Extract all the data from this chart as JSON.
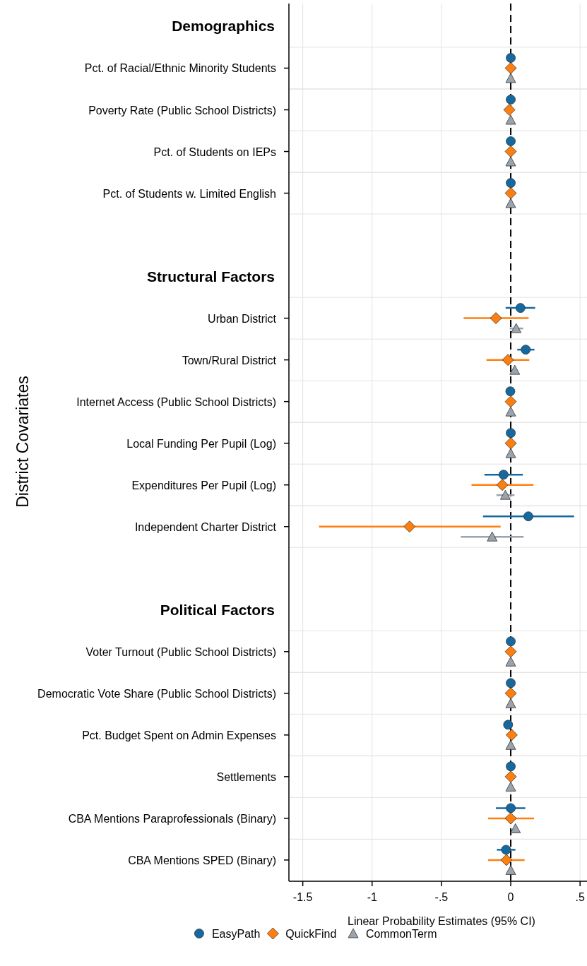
{
  "chart_data": {
    "type": "scatter",
    "orientation": "horizontal",
    "xlabel": "Linear Probability Estimates (95% CI)",
    "ylabel": "District Covariates",
    "categories": [
      "Demographics",
      "Pct. of Racial/Ethnic Minority Students",
      "Poverty Rate (Public School Districts)",
      "Pct. of Students on IEPs",
      "Pct. of Students w. Limited English",
      null,
      "Structural Factors",
      "Urban District",
      "Town/Rural District",
      "Internet Access (Public School Districts)",
      "Local Funding Per Pupil (Log)",
      "Expenditures Per Pupil (Log)",
      "Independent Charter District",
      null,
      "Political Factors",
      "Voter Turnout (Public School Districts)",
      "Democratic Vote Share (Public School Districts)",
      "Pct. Budget Spent on Admin Expenses",
      "Settlements",
      "CBA Mentions Paraprofessionals (Binary)",
      "CBA Mentions SPED (Binary)"
    ],
    "series": [
      {
        "name": "EasyPath",
        "color": "#1469a0",
        "marker": "circle",
        "values": [
          null,
          0,
          0,
          0,
          0,
          null,
          null,
          0.07,
          0.108,
          -0.003,
          0,
          -0.052,
          0.127,
          null,
          null,
          0,
          0,
          -0.019,
          0,
          0,
          -0.034
        ],
        "errors": [
          null,
          null,
          null,
          null,
          null,
          null,
          null,
          [
            -0.037,
            0.176
          ],
          [
            0.047,
            0.171
          ],
          null,
          null,
          [
            -0.19,
            0.087
          ],
          [
            -0.2,
            0.457
          ],
          null,
          null,
          null,
          null,
          null,
          null,
          [
            -0.107,
            0.105
          ],
          [
            -0.1,
            0.034
          ]
        ]
      },
      {
        "name": "QuickFind",
        "color": "#ff7f0e",
        "marker": "diamond",
        "values": [
          null,
          0,
          -0.01,
          0,
          0,
          null,
          null,
          -0.107,
          -0.02,
          0,
          0,
          -0.061,
          -0.73,
          null,
          null,
          0,
          0,
          0.007,
          0,
          0,
          -0.031
        ],
        "errors": [
          null,
          null,
          null,
          null,
          null,
          null,
          null,
          [
            -0.34,
            0.129
          ],
          [
            -0.175,
            0.134
          ],
          null,
          null,
          [
            -0.283,
            0.164
          ],
          [
            -1.383,
            -0.073
          ],
          null,
          null,
          null,
          null,
          null,
          null,
          [
            -0.163,
            0.168
          ],
          [
            -0.163,
            0.1
          ]
        ]
      },
      {
        "name": "CommonTerm",
        "color": "#9ba3ad",
        "marker": "triangle",
        "values": [
          null,
          0,
          0,
          0,
          0,
          null,
          null,
          0.039,
          0.029,
          0,
          0,
          -0.039,
          -0.134,
          null,
          null,
          0,
          0,
          0,
          0,
          0.034,
          0
        ],
        "errors": [
          null,
          null,
          null,
          null,
          null,
          null,
          null,
          [
            -0.007,
            0.09
          ],
          null,
          null,
          null,
          [
            -0.103,
            0.027
          ],
          [
            -0.36,
            0.093
          ],
          null,
          null,
          null,
          null,
          null,
          null,
          null,
          null
        ]
      }
    ],
    "xlim": [
      -1.6,
      0.55
    ],
    "xticks": [
      {
        "value": -1.5,
        "label": "-1.5"
      },
      {
        "value": -1,
        "label": "-1"
      },
      {
        "value": -0.5,
        "label": "-.5"
      },
      0,
      {
        "value": 0.5,
        "label": ".5"
      }
    ],
    "ref_lines": [
      {
        "axis": "x",
        "value": 0,
        "line_style": "dashed",
        "color": "#000000"
      }
    ],
    "grid": true,
    "legend": "bottom"
  }
}
